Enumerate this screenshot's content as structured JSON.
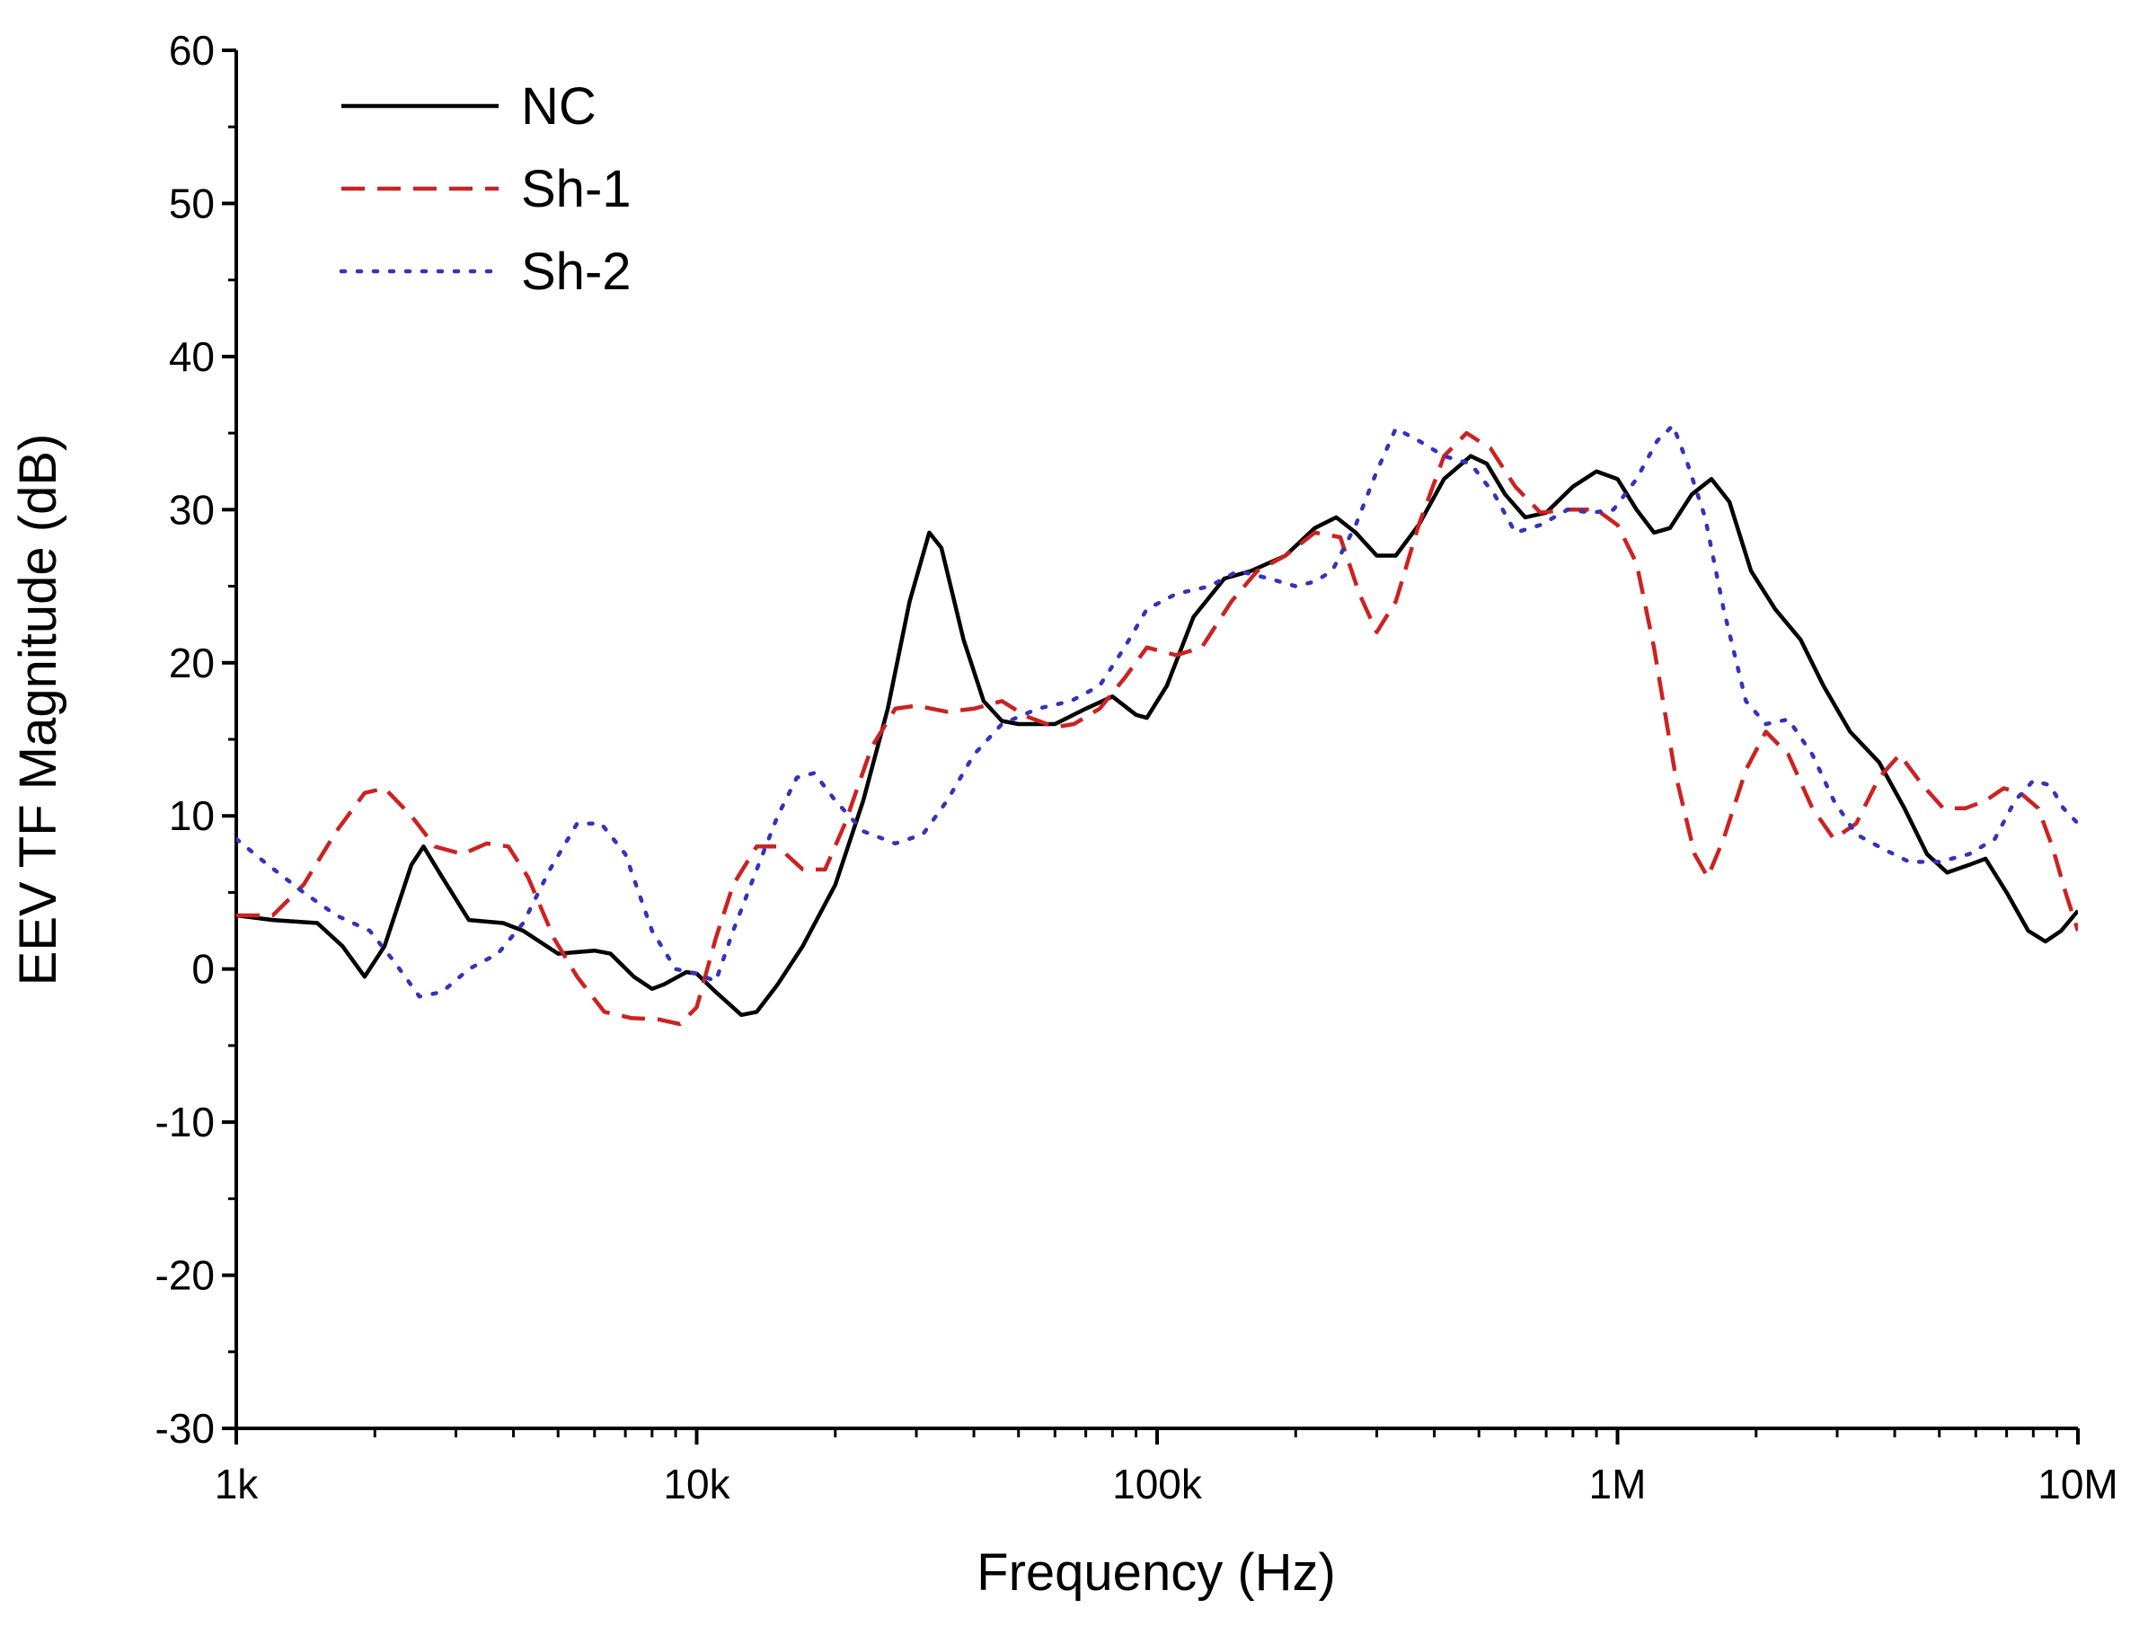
{
  "chart_data": {
    "type": "line",
    "title": "",
    "xlabel": "Frequency (Hz)",
    "ylabel": "EEV TF Magnitude (dB)",
    "xscale": "log",
    "xlim": [
      1000,
      10000000
    ],
    "ylim": [
      -30,
      60
    ],
    "x_ticks": [
      {
        "value": 1000,
        "label": "1k"
      },
      {
        "value": 10000,
        "label": "10k"
      },
      {
        "value": 100000,
        "label": "100k"
      },
      {
        "value": 1000000,
        "label": "1M"
      },
      {
        "value": 10000000,
        "label": "10M"
      }
    ],
    "y_ticks": [
      {
        "value": 60,
        "label": "60"
      },
      {
        "value": 50,
        "label": "50"
      },
      {
        "value": 40,
        "label": "40"
      },
      {
        "value": 30,
        "label": "30"
      },
      {
        "value": 20,
        "label": "20"
      },
      {
        "value": 10,
        "label": "10"
      },
      {
        "value": 0,
        "label": "0"
      },
      {
        "value": -10,
        "label": "-10"
      },
      {
        "value": -20,
        "label": "-20"
      },
      {
        "value": -30,
        "label": "-30"
      }
    ],
    "legend": {
      "position": "top-left"
    },
    "series": [
      {
        "name": "NC",
        "color": "#000000",
        "style": "solid",
        "points": [
          [
            1000,
            3.5
          ],
          [
            1200,
            3.2
          ],
          [
            1500,
            3.0
          ],
          [
            1700,
            1.5
          ],
          [
            1900,
            -0.5
          ],
          [
            2100,
            1.5
          ],
          [
            2400,
            6.8
          ],
          [
            2550,
            8.0
          ],
          [
            2800,
            6.0
          ],
          [
            3200,
            3.2
          ],
          [
            3800,
            3.0
          ],
          [
            4200,
            2.5
          ],
          [
            5000,
            1.0
          ],
          [
            6000,
            1.2
          ],
          [
            6500,
            1.0
          ],
          [
            7300,
            -0.5
          ],
          [
            8000,
            -1.3
          ],
          [
            8500,
            -1.0
          ],
          [
            9500,
            -0.2
          ],
          [
            10000,
            -0.3
          ],
          [
            11000,
            -1.5
          ],
          [
            12500,
            -3.0
          ],
          [
            13500,
            -2.8
          ],
          [
            15000,
            -1.0
          ],
          [
            17000,
            1.5
          ],
          [
            20000,
            5.5
          ],
          [
            23000,
            11.0
          ],
          [
            26000,
            17.0
          ],
          [
            29000,
            24.0
          ],
          [
            32000,
            28.5
          ],
          [
            34000,
            27.5
          ],
          [
            38000,
            21.5
          ],
          [
            42000,
            17.5
          ],
          [
            46000,
            16.2
          ],
          [
            50000,
            16.0
          ],
          [
            60000,
            16.0
          ],
          [
            70000,
            17.0
          ],
          [
            80000,
            17.8
          ],
          [
            90000,
            16.6
          ],
          [
            95000,
            16.4
          ],
          [
            105000,
            18.5
          ],
          [
            120000,
            23.0
          ],
          [
            140000,
            25.5
          ],
          [
            160000,
            26.0
          ],
          [
            190000,
            27.0
          ],
          [
            220000,
            28.8
          ],
          [
            245000,
            29.5
          ],
          [
            270000,
            28.5
          ],
          [
            300000,
            27.0
          ],
          [
            330000,
            27.0
          ],
          [
            370000,
            29.0
          ],
          [
            420000,
            32.0
          ],
          [
            480000,
            33.5
          ],
          [
            520000,
            33.0
          ],
          [
            570000,
            31.0
          ],
          [
            630000,
            29.5
          ],
          [
            700000,
            29.8
          ],
          [
            800000,
            31.5
          ],
          [
            900000,
            32.5
          ],
          [
            1000000,
            32.0
          ],
          [
            1100000,
            30.0
          ],
          [
            1200000,
            28.5
          ],
          [
            1300000,
            28.8
          ],
          [
            1450000,
            31.0
          ],
          [
            1600000,
            32.0
          ],
          [
            1750000,
            30.5
          ],
          [
            1950000,
            26.0
          ],
          [
            2200000,
            23.5
          ],
          [
            2500000,
            21.5
          ],
          [
            2800000,
            18.5
          ],
          [
            3200000,
            15.5
          ],
          [
            3700000,
            13.5
          ],
          [
            4200000,
            10.5
          ],
          [
            4700000,
            7.5
          ],
          [
            5200000,
            6.3
          ],
          [
            5800000,
            6.8
          ],
          [
            6300000,
            7.2
          ],
          [
            7000000,
            5.0
          ],
          [
            7800000,
            2.5
          ],
          [
            8500000,
            1.8
          ],
          [
            9200000,
            2.5
          ],
          [
            10000000,
            3.8
          ]
        ]
      },
      {
        "name": "Sh-1",
        "color": "#cc2222",
        "style": "dashed",
        "points": [
          [
            1000,
            3.5
          ],
          [
            1200,
            3.5
          ],
          [
            1400,
            5.5
          ],
          [
            1650,
            9.0
          ],
          [
            1900,
            11.5
          ],
          [
            2100,
            11.8
          ],
          [
            2400,
            10.0
          ],
          [
            2700,
            8.0
          ],
          [
            3100,
            7.5
          ],
          [
            3500,
            8.2
          ],
          [
            3900,
            8.0
          ],
          [
            4300,
            6.0
          ],
          [
            4900,
            2.0
          ],
          [
            5500,
            -0.5
          ],
          [
            6300,
            -2.8
          ],
          [
            7200,
            -3.2
          ],
          [
            8300,
            -3.3
          ],
          [
            9200,
            -3.6
          ],
          [
            10000,
            -2.5
          ],
          [
            11000,
            2.0
          ],
          [
            12000,
            5.5
          ],
          [
            13500,
            8.0
          ],
          [
            15000,
            8.0
          ],
          [
            17000,
            6.5
          ],
          [
            19000,
            6.5
          ],
          [
            21000,
            9.5
          ],
          [
            24000,
            14.5
          ],
          [
            27000,
            17.0
          ],
          [
            30000,
            17.2
          ],
          [
            35000,
            16.8
          ],
          [
            40000,
            17.0
          ],
          [
            46000,
            17.5
          ],
          [
            52000,
            16.5
          ],
          [
            60000,
            15.8
          ],
          [
            66000,
            16.0
          ],
          [
            75000,
            17.0
          ],
          [
            85000,
            19.0
          ],
          [
            95000,
            21.0
          ],
          [
            110000,
            20.5
          ],
          [
            125000,
            21.0
          ],
          [
            145000,
            24.0
          ],
          [
            165000,
            26.0
          ],
          [
            190000,
            27.0
          ],
          [
            220000,
            28.5
          ],
          [
            250000,
            28.2
          ],
          [
            275000,
            24.5
          ],
          [
            300000,
            22.0
          ],
          [
            330000,
            24.0
          ],
          [
            370000,
            29.0
          ],
          [
            420000,
            33.5
          ],
          [
            470000,
            35.0
          ],
          [
            530000,
            34.0
          ],
          [
            600000,
            31.5
          ],
          [
            680000,
            29.8
          ],
          [
            780000,
            30.0
          ],
          [
            900000,
            30.0
          ],
          [
            1000000,
            29.0
          ],
          [
            1100000,
            26.5
          ],
          [
            1200000,
            21.0
          ],
          [
            1330000,
            13.0
          ],
          [
            1470000,
            7.5
          ],
          [
            1570000,
            6.0
          ],
          [
            1700000,
            8.5
          ],
          [
            1900000,
            13.0
          ],
          [
            2100000,
            15.5
          ],
          [
            2350000,
            14.0
          ],
          [
            2650000,
            10.5
          ],
          [
            2950000,
            8.5
          ],
          [
            3300000,
            9.5
          ],
          [
            3700000,
            12.5
          ],
          [
            4100000,
            14.0
          ],
          [
            4600000,
            12.0
          ],
          [
            5100000,
            10.5
          ],
          [
            5700000,
            10.5
          ],
          [
            6300000,
            11.0
          ],
          [
            6900000,
            11.8
          ],
          [
            7500000,
            11.5
          ],
          [
            8200000,
            10.5
          ],
          [
            8800000,
            8.0
          ],
          [
            9400000,
            5.0
          ],
          [
            10000000,
            2.5
          ]
        ]
      },
      {
        "name": "Sh-2",
        "color": "#3333bb",
        "style": "dotted",
        "points": [
          [
            1000,
            8.5
          ],
          [
            1150,
            7.0
          ],
          [
            1400,
            5.0
          ],
          [
            1650,
            3.5
          ],
          [
            1950,
            2.5
          ],
          [
            2200,
            0.5
          ],
          [
            2500,
            -1.8
          ],
          [
            2800,
            -1.5
          ],
          [
            3200,
            0.0
          ],
          [
            3700,
            1.0
          ],
          [
            4200,
            3.0
          ],
          [
            4800,
            6.5
          ],
          [
            5500,
            9.5
          ],
          [
            6200,
            9.5
          ],
          [
            7000,
            7.5
          ],
          [
            8000,
            2.5
          ],
          [
            9000,
            0.0
          ],
          [
            10000,
            -0.3
          ],
          [
            11000,
            -0.8
          ],
          [
            12000,
            2.5
          ],
          [
            13500,
            6.5
          ],
          [
            15000,
            10.0
          ],
          [
            16500,
            12.5
          ],
          [
            18000,
            12.8
          ],
          [
            20000,
            11.0
          ],
          [
            23000,
            9.0
          ],
          [
            27000,
            8.2
          ],
          [
            31000,
            8.8
          ],
          [
            35000,
            11.0
          ],
          [
            40000,
            14.0
          ],
          [
            46000,
            16.0
          ],
          [
            55000,
            17.0
          ],
          [
            65000,
            17.5
          ],
          [
            75000,
            18.5
          ],
          [
            85000,
            21.0
          ],
          [
            95000,
            23.5
          ],
          [
            110000,
            24.5
          ],
          [
            130000,
            25.0
          ],
          [
            150000,
            26.0
          ],
          [
            175000,
            25.5
          ],
          [
            200000,
            25.0
          ],
          [
            220000,
            25.3
          ],
          [
            240000,
            26.0
          ],
          [
            270000,
            29.0
          ],
          [
            300000,
            32.5
          ],
          [
            330000,
            35.3
          ],
          [
            370000,
            34.5
          ],
          [
            420000,
            33.5
          ],
          [
            480000,
            33.0
          ],
          [
            540000,
            31.0
          ],
          [
            600000,
            28.5
          ],
          [
            680000,
            29.0
          ],
          [
            780000,
            30.0
          ],
          [
            880000,
            29.8
          ],
          [
            980000,
            30.0
          ],
          [
            1100000,
            32.0
          ],
          [
            1220000,
            34.5
          ],
          [
            1320000,
            35.5
          ],
          [
            1420000,
            33.0
          ],
          [
            1550000,
            29.5
          ],
          [
            1700000,
            23.5
          ],
          [
            1900000,
            17.5
          ],
          [
            2100000,
            16.0
          ],
          [
            2350000,
            16.3
          ],
          [
            2650000,
            14.0
          ],
          [
            2950000,
            11.0
          ],
          [
            3300000,
            8.8
          ],
          [
            3800000,
            7.8
          ],
          [
            4300000,
            7.0
          ],
          [
            5000000,
            7.0
          ],
          [
            5800000,
            7.5
          ],
          [
            6600000,
            8.5
          ],
          [
            7300000,
            11.0
          ],
          [
            8000000,
            12.3
          ],
          [
            8700000,
            12.0
          ],
          [
            9300000,
            10.5
          ],
          [
            10000000,
            9.5
          ]
        ]
      }
    ]
  }
}
